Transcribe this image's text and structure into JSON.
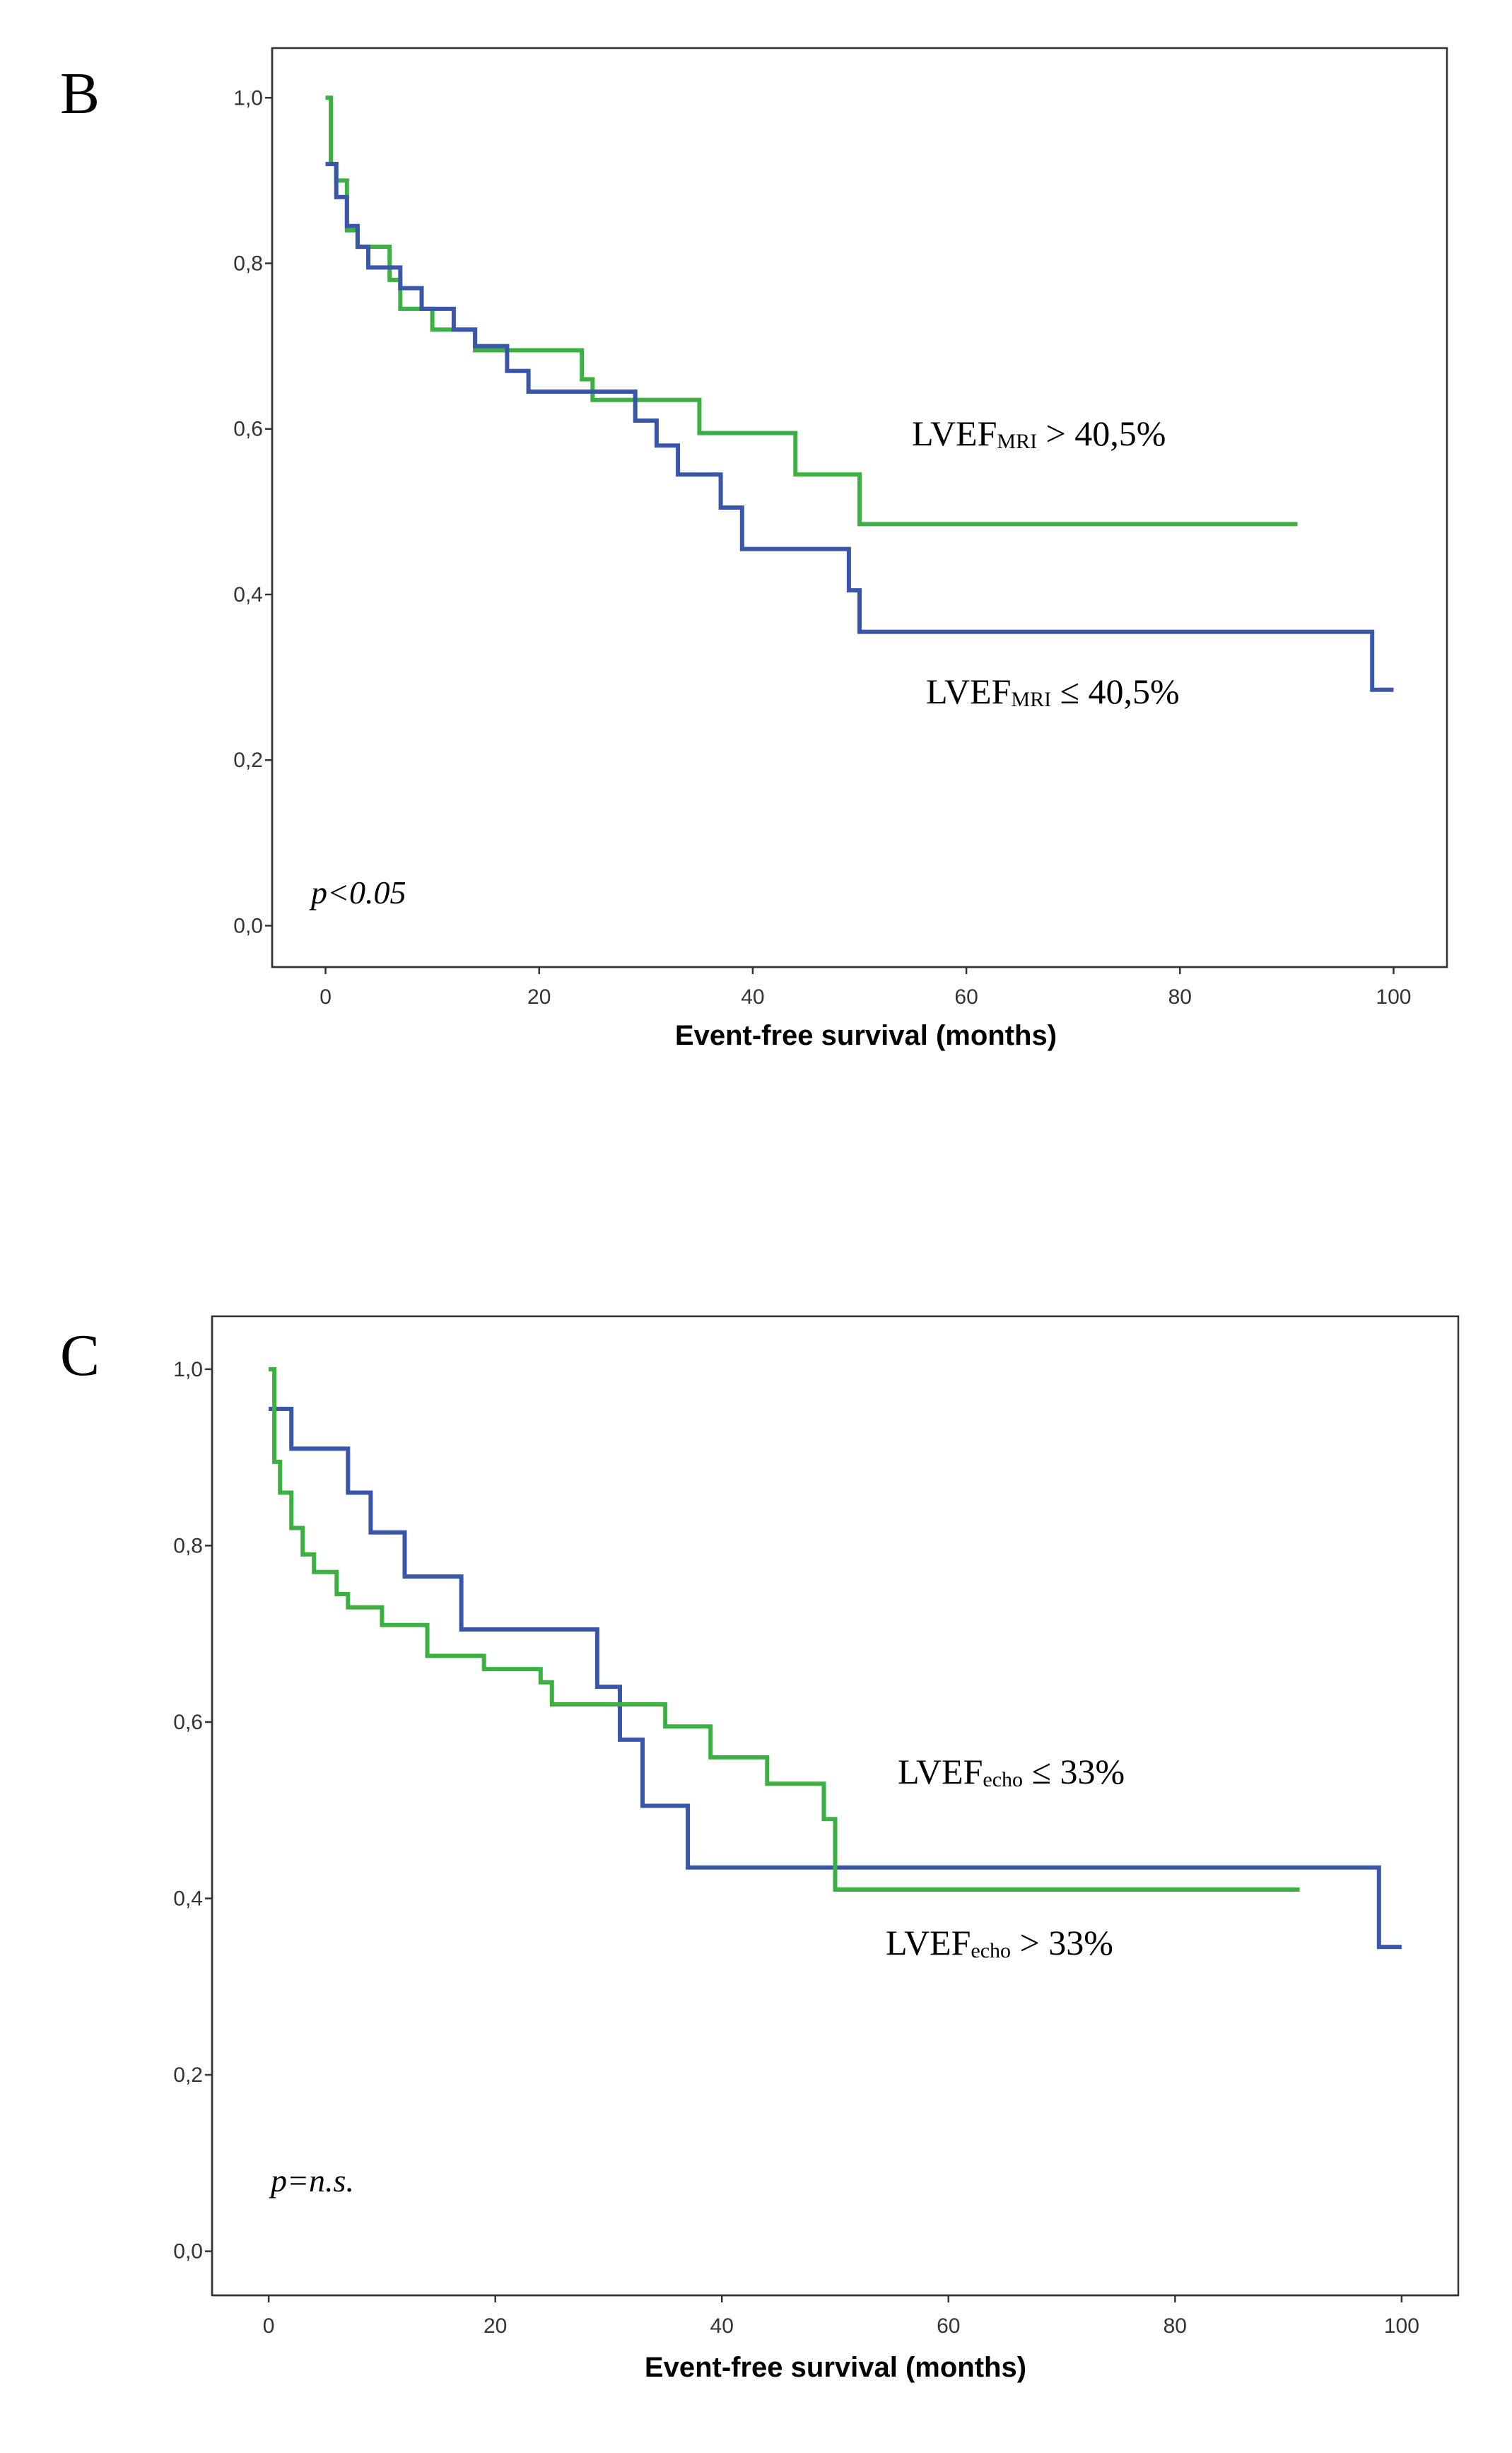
{
  "colors": {
    "blue": "#3a56a8",
    "green": "#3cb043",
    "axis": "#333333"
  },
  "chart_data": [
    {
      "type": "line",
      "panel": "B",
      "title": "",
      "xlabel": "Event-free survival (months)",
      "ylabel": "",
      "xlim": [
        -5,
        105
      ],
      "ylim": [
        -0.05,
        1.06
      ],
      "x_ticks": [
        0,
        20,
        40,
        60,
        80,
        100
      ],
      "x_tick_labels": [
        "0",
        "20",
        "40",
        "60",
        "80",
        "100"
      ],
      "y_ticks": [
        0.0,
        0.2,
        0.4,
        0.6,
        0.8,
        1.0
      ],
      "y_tick_labels": [
        "0,0",
        "0,2",
        "0,4",
        "0,6",
        "0,8",
        "1,0"
      ],
      "pvalue": "p<0.05",
      "annotations": [
        {
          "id": "green",
          "main": "LVEF",
          "sub": "MRI",
          "rest": " > 40,5%"
        },
        {
          "id": "blue",
          "main": "LVEF",
          "sub": "MRI",
          "rest": " ≤ 40,5%"
        }
      ],
      "series": [
        {
          "name": "LVEF MRI > 40,5%",
          "color": "green",
          "x": [
            0,
            0.5,
            1,
            2,
            3,
            6,
            7,
            10,
            14,
            24,
            25,
            35,
            44,
            50,
            91
          ],
          "y": [
            1.0,
            0.92,
            0.9,
            0.84,
            0.82,
            0.78,
            0.745,
            0.72,
            0.695,
            0.66,
            0.635,
            0.595,
            0.545,
            0.485,
            0.485
          ]
        },
        {
          "name": "LVEF MRI ≤ 40,5%",
          "color": "blue",
          "x": [
            0,
            1,
            2,
            3,
            4,
            7,
            9,
            12,
            14,
            17,
            19,
            29,
            31,
            33,
            37,
            39,
            49,
            50,
            98,
            100
          ],
          "y": [
            0.92,
            0.88,
            0.845,
            0.82,
            0.795,
            0.77,
            0.745,
            0.72,
            0.7,
            0.67,
            0.645,
            0.61,
            0.58,
            0.545,
            0.505,
            0.455,
            0.405,
            0.355,
            0.285,
            0.285
          ]
        }
      ]
    },
    {
      "type": "line",
      "panel": "C",
      "title": "",
      "xlabel": "Event-free survival (months)",
      "ylabel": "",
      "xlim": [
        -5,
        105
      ],
      "ylim": [
        -0.05,
        1.06
      ],
      "x_ticks": [
        0,
        20,
        40,
        60,
        80,
        100
      ],
      "x_tick_labels": [
        "0",
        "20",
        "40",
        "60",
        "80",
        "100"
      ],
      "y_ticks": [
        0.0,
        0.2,
        0.4,
        0.6,
        0.8,
        1.0
      ],
      "y_tick_labels": [
        "0,0",
        "0,2",
        "0,4",
        "0,6",
        "0,8",
        "1,0"
      ],
      "pvalue": "p=n.s.",
      "annotations": [
        {
          "id": "blue",
          "main": "LVEF",
          "sub": "echo",
          "rest": " ≤ 33%"
        },
        {
          "id": "green",
          "main": "LVEF",
          "sub": "echo",
          "rest": " > 33%"
        }
      ],
      "series": [
        {
          "name": "LVEF echo ≤ 33%",
          "color": "blue",
          "x": [
            0,
            2,
            7,
            9,
            12,
            17,
            29,
            31,
            33,
            37,
            98,
            100
          ],
          "y": [
            0.955,
            0.91,
            0.86,
            0.815,
            0.765,
            0.705,
            0.64,
            0.58,
            0.505,
            0.435,
            0.345,
            0.345
          ]
        },
        {
          "name": "LVEF echo > 33%",
          "color": "green",
          "x": [
            0,
            0.5,
            1,
            2,
            3,
            4,
            6,
            7,
            10,
            14,
            19,
            24,
            25,
            35,
            39,
            44,
            49,
            50,
            91
          ],
          "y": [
            1.0,
            0.895,
            0.86,
            0.82,
            0.79,
            0.77,
            0.745,
            0.73,
            0.71,
            0.675,
            0.66,
            0.645,
            0.62,
            0.595,
            0.56,
            0.53,
            0.49,
            0.41,
            0.41
          ]
        }
      ]
    }
  ]
}
